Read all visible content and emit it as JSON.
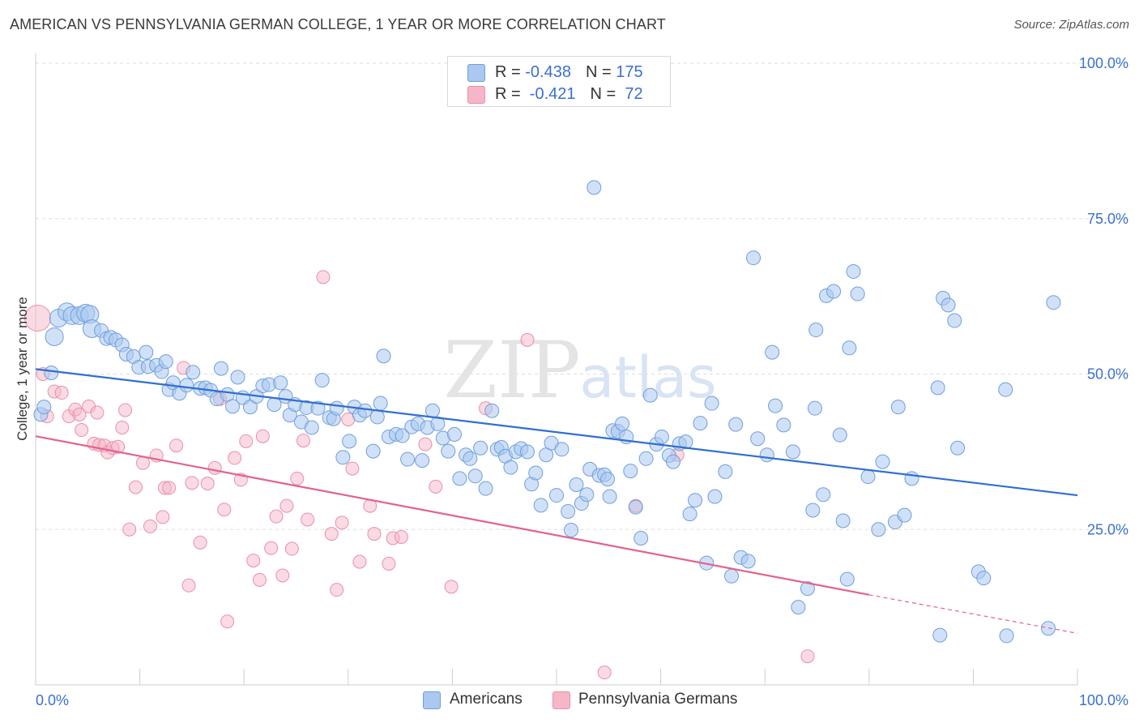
{
  "title": "AMERICAN VS PENNSYLVANIA GERMAN COLLEGE, 1 YEAR OR MORE CORRELATION CHART",
  "source": "Source: ZipAtlas.com",
  "watermark": {
    "zip": "ZIP",
    "atlas": "atlas"
  },
  "legend_top": {
    "rows": [
      {
        "r_label": "R = ",
        "r_value": "-0.438",
        "n_label": "N = ",
        "n_value": "175"
      },
      {
        "r_label": "R = ",
        "r_value": " -0.421",
        "n_label": "N = ",
        "n_value": " 72"
      }
    ]
  },
  "legend_bottom": {
    "series_a": "Americans",
    "series_b": "Pennsylvania Germans"
  },
  "colors": {
    "blue_fill": "#aac8f0",
    "blue_stroke": "#6f9fdc",
    "blue_line": "#2f6fd0",
    "pink_fill": "#f5b6c8",
    "pink_stroke": "#ea8faa",
    "pink_line": "#e3628c",
    "tick_label": "#3a6fd0",
    "grid": "#dddddd"
  },
  "chart_data": {
    "type": "scatter",
    "title": "AMERICAN VS PENNSYLVANIA GERMAN COLLEGE, 1 YEAR OR MORE CORRELATION CHART",
    "xlabel": "",
    "ylabel": "College, 1 year or more",
    "xlim": [
      0,
      100
    ],
    "ylim": [
      0,
      100
    ],
    "x_tick_labels": [
      "0.0%",
      "100.0%"
    ],
    "y_tick_labels": [
      "25.0%",
      "50.0%",
      "75.0%",
      "100.0%"
    ],
    "y_ticks": [
      25,
      50,
      75,
      100
    ],
    "grid": true,
    "legend_placement": "bottom",
    "series": [
      {
        "name": "Americans",
        "r": -0.438,
        "n": 175,
        "trend": {
          "x": [
            0,
            100
          ],
          "y": [
            50.8,
            30.5
          ]
        },
        "points": [
          [
            0.5,
            43.5
          ],
          [
            0.8,
            44.7
          ],
          [
            1.5,
            50.2
          ],
          [
            1.8,
            56.0
          ],
          [
            2.2,
            59.0
          ],
          [
            3.0,
            60.0
          ],
          [
            3.5,
            59.4
          ],
          [
            4.2,
            59.4
          ],
          [
            4.8,
            59.8
          ],
          [
            5.2,
            59.6
          ],
          [
            5.4,
            57.3
          ],
          [
            6.3,
            57.0
          ],
          [
            6.8,
            55.7
          ],
          [
            7.2,
            55.9
          ],
          [
            7.7,
            55.5
          ],
          [
            8.3,
            54.7
          ],
          [
            8.7,
            53.2
          ],
          [
            9.4,
            52.8
          ],
          [
            9.9,
            51.1
          ],
          [
            10.6,
            53.5
          ],
          [
            10.8,
            51.2
          ],
          [
            11.6,
            51.4
          ],
          [
            12.1,
            50.4
          ],
          [
            12.5,
            52.0
          ],
          [
            12.8,
            47.5
          ],
          [
            13.2,
            48.6
          ],
          [
            13.8,
            46.9
          ],
          [
            14.5,
            48.2
          ],
          [
            15.1,
            50.3
          ],
          [
            15.8,
            47.7
          ],
          [
            16.3,
            47.8
          ],
          [
            16.8,
            47.4
          ],
          [
            17.4,
            46.0
          ],
          [
            17.8,
            50.9
          ],
          [
            18.4,
            46.7
          ],
          [
            18.9,
            44.8
          ],
          [
            19.4,
            49.5
          ],
          [
            19.9,
            46.2
          ],
          [
            20.6,
            44.7
          ],
          [
            21.2,
            46.4
          ],
          [
            21.8,
            48.1
          ],
          [
            22.4,
            48.3
          ],
          [
            22.9,
            45.1
          ],
          [
            23.5,
            48.6
          ],
          [
            24.0,
            46.4
          ],
          [
            24.4,
            43.4
          ],
          [
            24.9,
            45.1
          ],
          [
            25.5,
            42.3
          ],
          [
            26.0,
            44.6
          ],
          [
            26.5,
            41.4
          ],
          [
            27.1,
            44.5
          ],
          [
            27.5,
            49.0
          ],
          [
            28.2,
            43.0
          ],
          [
            28.6,
            42.8
          ],
          [
            28.9,
            44.5
          ],
          [
            29.5,
            36.6
          ],
          [
            30.1,
            39.2
          ],
          [
            30.6,
            44.7
          ],
          [
            31.1,
            43.4
          ],
          [
            31.6,
            44.1
          ],
          [
            32.4,
            37.6
          ],
          [
            32.8,
            43.1
          ],
          [
            33.1,
            45.3
          ],
          [
            33.4,
            52.9
          ],
          [
            33.9,
            39.9
          ],
          [
            34.6,
            40.3
          ],
          [
            35.2,
            40.1
          ],
          [
            35.7,
            36.3
          ],
          [
            36.1,
            41.5
          ],
          [
            36.7,
            42.0
          ],
          [
            37.1,
            36.1
          ],
          [
            37.6,
            41.4
          ],
          [
            38.1,
            44.1
          ],
          [
            38.6,
            42.0
          ],
          [
            39.1,
            39.7
          ],
          [
            39.6,
            37.6
          ],
          [
            40.2,
            40.3
          ],
          [
            40.7,
            33.2
          ],
          [
            41.3,
            37.0
          ],
          [
            41.7,
            36.4
          ],
          [
            42.2,
            33.6
          ],
          [
            42.7,
            38.1
          ],
          [
            43.2,
            31.6
          ],
          [
            43.8,
            44.1
          ],
          [
            44.3,
            37.9
          ],
          [
            44.7,
            38.2
          ],
          [
            45.1,
            36.8
          ],
          [
            45.6,
            35.0
          ],
          [
            46.1,
            37.5
          ],
          [
            46.6,
            38.0
          ],
          [
            47.2,
            37.5
          ],
          [
            47.6,
            32.3
          ],
          [
            48.0,
            34.1
          ],
          [
            48.5,
            28.9
          ],
          [
            49.0,
            37.0
          ],
          [
            49.5,
            38.9
          ],
          [
            50.0,
            30.5
          ],
          [
            50.5,
            37.9
          ],
          [
            51.1,
            27.9
          ],
          [
            51.4,
            24.9
          ],
          [
            51.9,
            32.2
          ],
          [
            52.4,
            29.2
          ],
          [
            52.9,
            30.6
          ],
          [
            53.2,
            34.7
          ],
          [
            53.6,
            80.0
          ],
          [
            54.1,
            33.7
          ],
          [
            54.6,
            33.8
          ],
          [
            54.9,
            33.1
          ],
          [
            55.1,
            30.3
          ],
          [
            55.4,
            40.9
          ],
          [
            55.9,
            40.8
          ],
          [
            56.3,
            42.0
          ],
          [
            56.7,
            39.9
          ],
          [
            57.1,
            34.4
          ],
          [
            57.6,
            28.6
          ],
          [
            58.1,
            23.6
          ],
          [
            58.6,
            36.4
          ],
          [
            59.0,
            46.6
          ],
          [
            59.6,
            38.7
          ],
          [
            60.1,
            39.9
          ],
          [
            60.8,
            36.9
          ],
          [
            61.2,
            35.9
          ],
          [
            61.8,
            38.8
          ],
          [
            62.4,
            39.1
          ],
          [
            62.8,
            27.5
          ],
          [
            63.3,
            29.7
          ],
          [
            63.8,
            42.1
          ],
          [
            64.4,
            19.6
          ],
          [
            64.9,
            45.3
          ],
          [
            65.2,
            30.3
          ],
          [
            66.2,
            34.3
          ],
          [
            66.8,
            17.5
          ],
          [
            67.2,
            41.9
          ],
          [
            67.7,
            20.5
          ],
          [
            68.4,
            19.9
          ],
          [
            68.9,
            68.7
          ],
          [
            69.3,
            39.6
          ],
          [
            70.2,
            37.0
          ],
          [
            70.7,
            53.5
          ],
          [
            71.0,
            44.9
          ],
          [
            71.8,
            41.8
          ],
          [
            72.7,
            37.5
          ],
          [
            73.2,
            12.5
          ],
          [
            74.1,
            15.5
          ],
          [
            74.6,
            28.1
          ],
          [
            74.9,
            57.1
          ],
          [
            74.8,
            44.5
          ],
          [
            75.6,
            30.6
          ],
          [
            75.9,
            62.6
          ],
          [
            76.6,
            63.3
          ],
          [
            77.2,
            40.2
          ],
          [
            77.5,
            26.4
          ],
          [
            77.9,
            17.0
          ],
          [
            78.1,
            54.2
          ],
          [
            78.5,
            66.5
          ],
          [
            78.9,
            62.9
          ],
          [
            79.9,
            33.5
          ],
          [
            80.9,
            25.0
          ],
          [
            81.3,
            35.9
          ],
          [
            82.5,
            26.2
          ],
          [
            82.8,
            44.7
          ],
          [
            83.4,
            27.3
          ],
          [
            84.1,
            33.2
          ],
          [
            86.6,
            47.8
          ],
          [
            86.8,
            8.0
          ],
          [
            87.1,
            62.2
          ],
          [
            87.6,
            61.1
          ],
          [
            88.2,
            58.6
          ],
          [
            88.5,
            38.1
          ],
          [
            90.5,
            18.2
          ],
          [
            91.0,
            17.2
          ],
          [
            93.1,
            47.5
          ],
          [
            93.2,
            7.9
          ],
          [
            97.2,
            9.1
          ],
          [
            97.7,
            61.5
          ]
        ]
      },
      {
        "name": "Pennsylvania Germans",
        "r": -0.421,
        "n": 72,
        "trend": {
          "x": [
            0,
            80
          ],
          "y": [
            40.0,
            14.5
          ],
          "dashed_to": {
            "x": 100,
            "y": 8.3
          }
        },
        "points": [
          [
            0.2,
            59.0
          ],
          [
            0.7,
            50.0
          ],
          [
            1.1,
            43.2
          ],
          [
            1.8,
            47.2
          ],
          [
            2.5,
            47.0
          ],
          [
            3.2,
            43.2
          ],
          [
            3.8,
            44.3
          ],
          [
            4.2,
            43.5
          ],
          [
            4.4,
            41.0
          ],
          [
            5.1,
            44.8
          ],
          [
            5.6,
            38.8
          ],
          [
            5.9,
            43.8
          ],
          [
            6.1,
            38.6
          ],
          [
            6.6,
            38.5
          ],
          [
            6.9,
            37.4
          ],
          [
            7.4,
            38.1
          ],
          [
            7.9,
            38.3
          ],
          [
            8.3,
            41.4
          ],
          [
            8.6,
            44.2
          ],
          [
            9.0,
            25.0
          ],
          [
            9.6,
            31.8
          ],
          [
            10.3,
            35.7
          ],
          [
            11.0,
            25.5
          ],
          [
            11.6,
            36.9
          ],
          [
            12.2,
            27.0
          ],
          [
            12.4,
            31.7
          ],
          [
            12.8,
            31.7
          ],
          [
            13.5,
            38.5
          ],
          [
            14.2,
            51.0
          ],
          [
            14.7,
            16.0
          ],
          [
            15.0,
            32.5
          ],
          [
            15.8,
            22.9
          ],
          [
            16.5,
            32.4
          ],
          [
            17.2,
            34.9
          ],
          [
            17.7,
            46.0
          ],
          [
            18.1,
            28.2
          ],
          [
            18.4,
            10.2
          ],
          [
            19.1,
            36.5
          ],
          [
            19.7,
            33.0
          ],
          [
            20.2,
            39.2
          ],
          [
            20.9,
            20.0
          ],
          [
            21.5,
            16.9
          ],
          [
            21.8,
            40.0
          ],
          [
            22.6,
            22.0
          ],
          [
            23.1,
            27.1
          ],
          [
            23.7,
            17.6
          ],
          [
            24.1,
            28.8
          ],
          [
            24.6,
            21.9
          ],
          [
            25.1,
            33.2
          ],
          [
            25.7,
            39.3
          ],
          [
            26.1,
            26.6
          ],
          [
            27.6,
            65.6
          ],
          [
            28.4,
            24.3
          ],
          [
            28.9,
            15.3
          ],
          [
            29.4,
            26.1
          ],
          [
            30.0,
            42.7
          ],
          [
            30.4,
            34.8
          ],
          [
            31.1,
            19.8
          ],
          [
            32.1,
            28.8
          ],
          [
            32.5,
            24.3
          ],
          [
            33.9,
            19.5
          ],
          [
            34.3,
            23.6
          ],
          [
            35.1,
            23.8
          ],
          [
            37.4,
            38.7
          ],
          [
            38.4,
            31.9
          ],
          [
            39.9,
            15.8
          ],
          [
            43.2,
            44.5
          ],
          [
            47.2,
            55.5
          ],
          [
            54.6,
            2.0
          ],
          [
            57.6,
            28.8
          ],
          [
            61.6,
            37.0
          ],
          [
            74.1,
            4.6
          ]
        ]
      }
    ]
  }
}
